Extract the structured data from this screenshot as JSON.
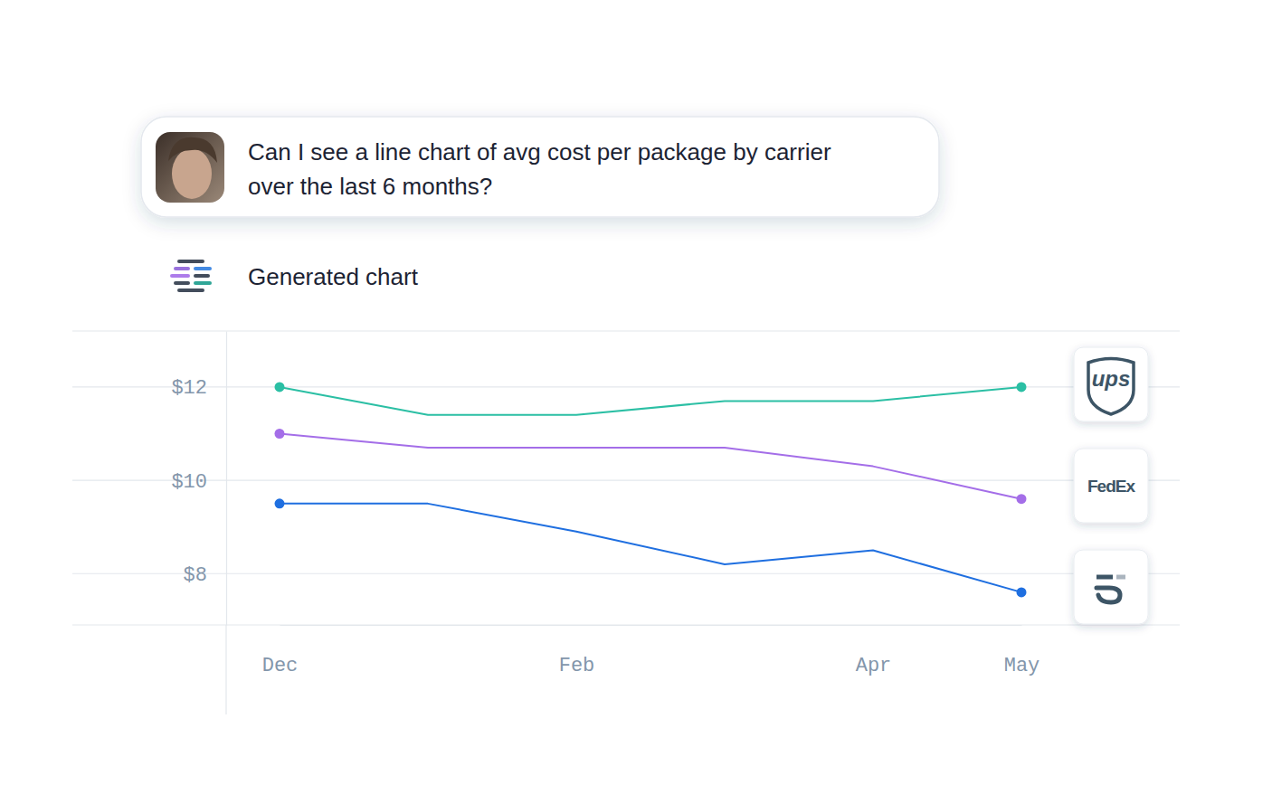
{
  "prompt": "Can I see a line chart of avg cost per package by carrier over the last 6 months?",
  "response_label": "Generated chart",
  "chart_data": {
    "type": "line",
    "categories": [
      "Dec",
      null,
      "Feb",
      null,
      "Apr",
      "May"
    ],
    "ylim": [
      6.9,
      13.2
    ],
    "yticks": [
      {
        "value": 8,
        "label": "$8"
      },
      {
        "value": 10,
        "label": "$10"
      },
      {
        "value": 12,
        "label": "$12"
      }
    ],
    "grid": true,
    "marker": "circle",
    "legend": "right",
    "series": [
      {
        "name": "ups",
        "color": "#2bbfa4",
        "values": [
          12.0,
          11.4,
          11.4,
          11.7,
          11.7,
          12.0
        ]
      },
      {
        "name": "FedEx",
        "color": "#a46ee8",
        "values": [
          11.0,
          10.7,
          10.7,
          10.7,
          10.3,
          9.6
        ]
      },
      {
        "color": "#1f6fe0",
        "values": [
          9.5,
          9.5,
          8.9,
          8.2,
          8.5,
          7.6
        ]
      }
    ]
  }
}
